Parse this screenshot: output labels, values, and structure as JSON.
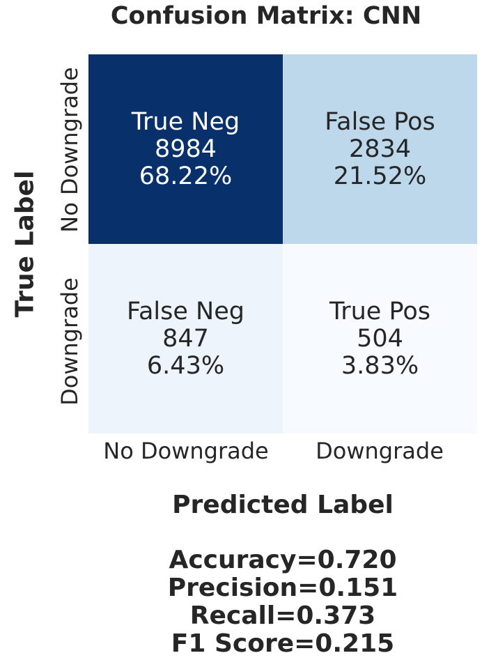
{
  "chart_data": {
    "type": "heatmap",
    "title": "Confusion Matrix: CNN",
    "xlabel": "Predicted Label",
    "ylabel": "True Label",
    "x_categories": [
      "No Downgrade",
      "Downgrade"
    ],
    "y_categories": [
      "No Downgrade",
      "Downgrade"
    ],
    "cells": [
      {
        "row": 0,
        "col": 0,
        "name": "True Neg",
        "count": "8984",
        "percent": "68.22%",
        "value": 8984,
        "color": "#08306b",
        "text_color": "#ffffff"
      },
      {
        "row": 0,
        "col": 1,
        "name": "False Pos",
        "count": "2834",
        "percent": "21.52%",
        "value": 2834,
        "color": "#bdd7eb",
        "text_color": "#262626"
      },
      {
        "row": 1,
        "col": 0,
        "name": "False Neg",
        "count": "847",
        "percent": "6.43%",
        "value": 847,
        "color": "#eef4fb",
        "text_color": "#262626"
      },
      {
        "row": 1,
        "col": 1,
        "name": "True Pos",
        "count": "504",
        "percent": "3.83%",
        "value": 504,
        "color": "#f7fbff",
        "text_color": "#262626"
      }
    ],
    "colormap": "Blues",
    "colorbar": false
  },
  "metrics": {
    "accuracy": "Accuracy=0.720",
    "precision": "Precision=0.151",
    "recall": "Recall=0.373",
    "f1": "F1 Score=0.215"
  }
}
